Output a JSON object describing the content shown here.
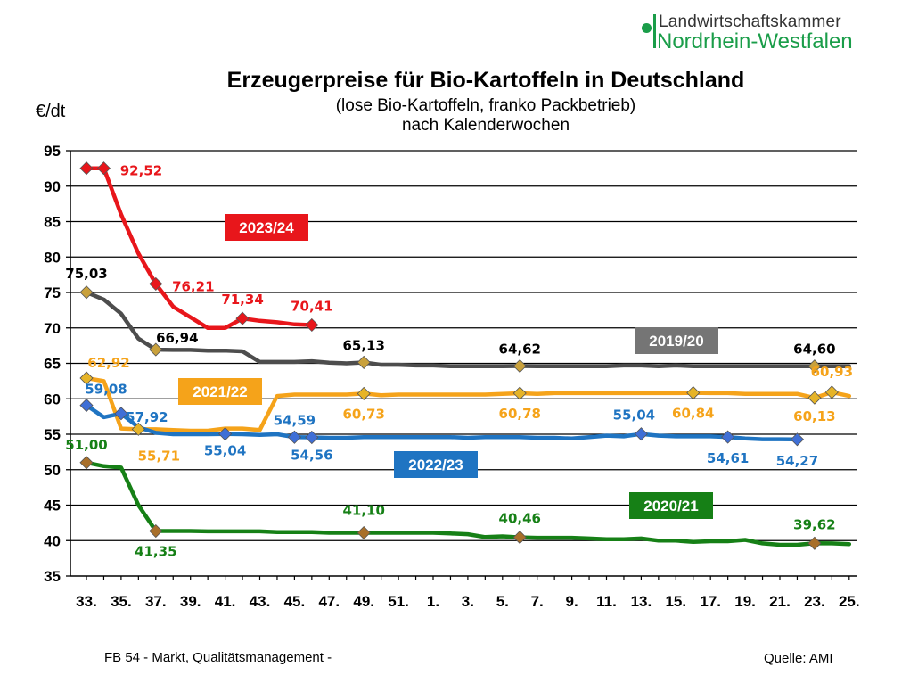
{
  "header": {
    "logo_line1": "Landwirtschaftskammer",
    "logo_line2": "Nordrhein-Westfalen"
  },
  "footer": {
    "left": "FB 54 - Markt, Qualitätsmanagement -",
    "right": "Quelle: AMI"
  },
  "chart_data": {
    "type": "line",
    "title": "Erzeugerpreise für Bio-Kartoffeln in Deutschland",
    "subtitle_line1": "(lose Bio-Kartoffeln, franko Packbetrieb)",
    "subtitle_line2": "nach Kalenderwochen",
    "ylabel": "€/dt",
    "xlabel": "",
    "ylim": [
      35,
      95
    ],
    "yticks": [
      35,
      40,
      45,
      50,
      55,
      60,
      65,
      70,
      75,
      80,
      85,
      90,
      95
    ],
    "x_weeks": [
      "33.",
      "34.",
      "35.",
      "36.",
      "37.",
      "38.",
      "39.",
      "40.",
      "41.",
      "42.",
      "43.",
      "44.",
      "45.",
      "46.",
      "47.",
      "48.",
      "49.",
      "50.",
      "51.",
      "52.",
      "1.",
      "2.",
      "3.",
      "4.",
      "5.",
      "6.",
      "7.",
      "8.",
      "9.",
      "10.",
      "11.",
      "12.",
      "13.",
      "14.",
      "15.",
      "16.",
      "17.",
      "18.",
      "19.",
      "20.",
      "21.",
      "22.",
      "23.",
      "24.",
      "25."
    ],
    "x_tick_labels": [
      "33.",
      "35.",
      "37.",
      "39.",
      "41.",
      "43.",
      "45.",
      "47.",
      "49.",
      "51.",
      "1.",
      "3.",
      "5.",
      "7.",
      "9.",
      "11.",
      "13.",
      "15.",
      "17.",
      "19.",
      "21.",
      "23.",
      "25."
    ],
    "grid": "horizontal",
    "series": [
      {
        "name": "2019/20",
        "color": "#4d4d4d",
        "values": [
          75.03,
          74.0,
          72.0,
          68.5,
          66.94,
          66.9,
          66.9,
          66.8,
          66.8,
          66.7,
          65.2,
          65.2,
          65.2,
          65.3,
          65.1,
          65.0,
          65.13,
          64.8,
          64.8,
          64.7,
          64.7,
          64.6,
          64.6,
          64.6,
          64.6,
          64.62,
          64.6,
          64.6,
          64.6,
          64.6,
          64.6,
          64.7,
          64.7,
          64.6,
          64.7,
          64.6,
          64.6,
          64.6,
          64.6,
          64.6,
          64.6,
          64.6,
          64.6,
          64.6,
          64.6
        ],
        "markers": [
          {
            "week": "33.",
            "label": "75,03"
          },
          {
            "week": "37.",
            "label": "66,94"
          },
          {
            "week": "49.",
            "label": "65,13"
          },
          {
            "week": "6.",
            "label": "64,62"
          },
          {
            "week": "23.",
            "label": "64,60"
          }
        ]
      },
      {
        "name": "2020/21",
        "color": "#168016",
        "values": [
          51.0,
          50.5,
          50.3,
          45.0,
          41.35,
          41.35,
          41.35,
          41.3,
          41.3,
          41.3,
          41.3,
          41.2,
          41.2,
          41.2,
          41.1,
          41.1,
          41.1,
          41.1,
          41.1,
          41.1,
          41.1,
          41.0,
          40.9,
          40.5,
          40.6,
          40.46,
          40.4,
          40.4,
          40.4,
          40.3,
          40.2,
          40.2,
          40.3,
          40.0,
          40.0,
          39.8,
          39.9,
          39.9,
          40.1,
          39.6,
          39.4,
          39.4,
          39.62,
          39.6,
          39.5
        ],
        "markers": [
          {
            "week": "33.",
            "label": "51,00"
          },
          {
            "week": "37.",
            "label": "41,35"
          },
          {
            "week": "49.",
            "label": "41,10"
          },
          {
            "week": "6.",
            "label": "40,46"
          },
          {
            "week": "23.",
            "label": "39,62"
          }
        ]
      },
      {
        "name": "2021/22",
        "color": "#f5a31a",
        "values": [
          62.92,
          62.5,
          55.8,
          55.71,
          55.7,
          55.6,
          55.5,
          55.5,
          55.8,
          55.8,
          55.6,
          60.4,
          60.6,
          60.6,
          60.6,
          60.6,
          60.73,
          60.5,
          60.6,
          60.6,
          60.6,
          60.6,
          60.6,
          60.6,
          60.7,
          60.78,
          60.7,
          60.8,
          60.8,
          60.8,
          60.8,
          60.8,
          60.8,
          60.8,
          60.8,
          60.84,
          60.8,
          60.8,
          60.7,
          60.7,
          60.7,
          60.7,
          60.13,
          60.93,
          60.4
        ],
        "markers": [
          {
            "week": "33.",
            "label": "62,92"
          },
          {
            "week": "36.",
            "label": "55,71"
          },
          {
            "week": "49.",
            "label": "60,73"
          },
          {
            "week": "6.",
            "label": "60,78"
          },
          {
            "week": "16.",
            "label": "60,84"
          },
          {
            "week": "23.",
            "label": "60,13"
          },
          {
            "week": "24.",
            "label": "60,93"
          }
        ]
      },
      {
        "name": "2022/23",
        "color": "#1f74c2",
        "values": [
          59.08,
          57.4,
          57.92,
          56.0,
          55.2,
          55.0,
          55.0,
          55.0,
          55.04,
          55.0,
          54.9,
          55.0,
          54.59,
          54.56,
          54.5,
          54.5,
          54.6,
          54.6,
          54.6,
          54.6,
          54.6,
          54.6,
          54.5,
          54.6,
          54.6,
          54.6,
          54.5,
          54.5,
          54.4,
          54.6,
          54.8,
          54.7,
          55.04,
          54.8,
          54.7,
          54.7,
          54.7,
          54.61,
          54.4,
          54.3,
          54.3,
          54.27,
          null,
          null,
          null
        ],
        "markers": [
          {
            "week": "33.",
            "label": "59,08"
          },
          {
            "week": "35.",
            "label": "57,92"
          },
          {
            "week": "41.",
            "label": "55,04"
          },
          {
            "week": "45.",
            "label": "54,59"
          },
          {
            "week": "46.",
            "label": "54,56"
          },
          {
            "week": "13.",
            "label": "55,04"
          },
          {
            "week": "18.",
            "label": "54,61"
          },
          {
            "week": "22.",
            "label": "54,27"
          }
        ]
      },
      {
        "name": "2023/24",
        "color": "#e8161b",
        "values": [
          92.52,
          92.52,
          86.0,
          80.5,
          76.21,
          73.0,
          71.5,
          70.0,
          70.0,
          71.34,
          71.0,
          70.8,
          70.5,
          70.41,
          null,
          null,
          null,
          null,
          null,
          null,
          null,
          null,
          null,
          null,
          null,
          null,
          null,
          null,
          null,
          null,
          null,
          null,
          null,
          null,
          null,
          null,
          null,
          null,
          null,
          null,
          null,
          null,
          null,
          null,
          null
        ],
        "markers": [
          {
            "week": "33.",
            "label": ""
          },
          {
            "week": "34.",
            "label": "92,52"
          },
          {
            "week": "37.",
            "label": "76,21"
          },
          {
            "week": "42.",
            "label": "71,34"
          },
          {
            "week": "46.",
            "label": "70,41"
          }
        ]
      }
    ]
  }
}
